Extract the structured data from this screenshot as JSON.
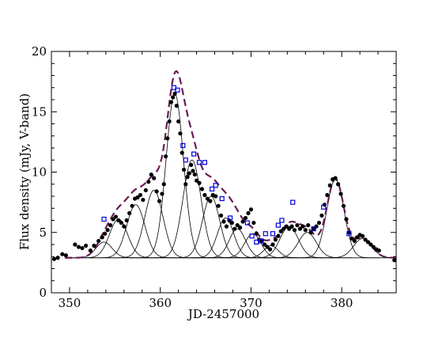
{
  "chart_data": {
    "type": "scatter",
    "xlabel": "JD-2457000",
    "ylabel": "Flux density (mJy, V-band)",
    "xlim": [
      348,
      386
    ],
    "ylim": [
      0,
      20
    ],
    "x_ticks": [
      350,
      360,
      370,
      380
    ],
    "y_ticks": [
      0,
      5,
      10,
      15,
      20
    ],
    "x_minor_step": 2,
    "y_minor_step": 1,
    "baseline": 2.9,
    "colors": {
      "points": "#000000",
      "squares": "#0000dd",
      "model": "#6a1a55",
      "components": "#000000"
    },
    "components": [
      {
        "center": 353.8,
        "amp": 1.3,
        "width": 0.9
      },
      {
        "center": 355.4,
        "amp": 3.2,
        "width": 1.0
      },
      {
        "center": 357.3,
        "amp": 4.4,
        "width": 1.0
      },
      {
        "center": 359.3,
        "amp": 5.6,
        "width": 1.0
      },
      {
        "center": 361.6,
        "amp": 13.6,
        "width": 0.95
      },
      {
        "center": 363.5,
        "amp": 8.1,
        "width": 1.0
      },
      {
        "center": 365.6,
        "amp": 5.1,
        "width": 0.95
      },
      {
        "center": 367.2,
        "amp": 3.3,
        "width": 0.9
      },
      {
        "center": 368.5,
        "amp": 2.4,
        "width": 0.9
      },
      {
        "center": 370.2,
        "amp": 2.0,
        "width": 0.9
      },
      {
        "center": 372.2,
        "amp": 1.0,
        "width": 0.8
      },
      {
        "center": 374.2,
        "amp": 2.6,
        "width": 1.0
      },
      {
        "center": 376.2,
        "amp": 2.1,
        "width": 1.0
      },
      {
        "center": 379.3,
        "amp": 6.5,
        "width": 0.95
      },
      {
        "center": 382.3,
        "amp": 1.6,
        "width": 1.0
      }
    ],
    "points": [
      [
        348.3,
        2.8
      ],
      [
        348.7,
        2.9
      ],
      [
        349.2,
        3.2
      ],
      [
        349.6,
        3.1
      ],
      [
        350.6,
        4.0
      ],
      [
        351.0,
        3.8
      ],
      [
        351.4,
        3.7
      ],
      [
        351.8,
        3.9
      ],
      [
        352.3,
        3.5
      ],
      [
        352.7,
        3.9
      ],
      [
        353.2,
        4.3
      ],
      [
        353.6,
        4.6
      ],
      [
        353.9,
        4.9
      ],
      [
        354.2,
        5.2
      ],
      [
        354.5,
        5.6
      ],
      [
        354.8,
        6.1
      ],
      [
        355.1,
        6.3
      ],
      [
        355.4,
        6.0
      ],
      [
        355.7,
        5.8
      ],
      [
        356.0,
        5.5
      ],
      [
        356.3,
        6.0
      ],
      [
        356.6,
        6.6
      ],
      [
        356.9,
        7.2
      ],
      [
        357.2,
        7.8
      ],
      [
        357.5,
        7.9
      ],
      [
        357.8,
        8.1
      ],
      [
        358.1,
        7.7
      ],
      [
        358.4,
        8.5
      ],
      [
        358.7,
        9.2
      ],
      [
        359.0,
        9.8
      ],
      [
        359.3,
        9.5
      ],
      [
        359.6,
        8.4
      ],
      [
        359.9,
        7.6
      ],
      [
        360.2,
        8.2
      ],
      [
        360.4,
        9.0
      ],
      [
        360.6,
        11.3
      ],
      [
        360.8,
        12.8
      ],
      [
        361.0,
        14.2
      ],
      [
        361.2,
        15.8
      ],
      [
        361.4,
        16.2
      ],
      [
        361.6,
        16.5
      ],
      [
        361.8,
        15.5
      ],
      [
        362.0,
        14.2
      ],
      [
        362.2,
        13.2
      ],
      [
        362.4,
        11.6
      ],
      [
        362.6,
        10.2
      ],
      [
        362.8,
        9.0
      ],
      [
        363.0,
        9.6
      ],
      [
        363.2,
        9.9
      ],
      [
        363.4,
        10.6
      ],
      [
        363.6,
        10.1
      ],
      [
        363.8,
        9.8
      ],
      [
        364.0,
        9.3
      ],
      [
        364.3,
        9.1
      ],
      [
        364.6,
        8.6
      ],
      [
        364.9,
        8.1
      ],
      [
        365.2,
        7.8
      ],
      [
        365.5,
        7.6
      ],
      [
        365.8,
        8.1
      ],
      [
        366.1,
        8.0
      ],
      [
        366.4,
        7.2
      ],
      [
        366.7,
        6.4
      ],
      [
        367.0,
        5.9
      ],
      [
        367.3,
        5.5
      ],
      [
        367.6,
        6.0
      ],
      [
        367.9,
        5.8
      ],
      [
        368.2,
        5.3
      ],
      [
        368.5,
        5.6
      ],
      [
        368.8,
        5.4
      ],
      [
        369.1,
        5.9
      ],
      [
        369.4,
        6.2
      ],
      [
        369.7,
        6.6
      ],
      [
        370.0,
        6.9
      ],
      [
        370.3,
        5.8
      ],
      [
        370.6,
        4.9
      ],
      [
        370.9,
        4.4
      ],
      [
        371.2,
        4.3
      ],
      [
        371.5,
        4.0
      ],
      [
        371.8,
        3.8
      ],
      [
        372.1,
        3.6
      ],
      [
        372.4,
        4.0
      ],
      [
        372.7,
        4.4
      ],
      [
        373.0,
        4.7
      ],
      [
        373.3,
        5.1
      ],
      [
        373.6,
        5.3
      ],
      [
        373.9,
        5.5
      ],
      [
        374.2,
        5.3
      ],
      [
        374.5,
        5.5
      ],
      [
        374.8,
        5.2
      ],
      [
        375.1,
        5.6
      ],
      [
        375.4,
        5.3
      ],
      [
        375.7,
        5.5
      ],
      [
        376.0,
        5.2
      ],
      [
        376.3,
        5.6
      ],
      [
        376.6,
        5.0
      ],
      [
        376.9,
        5.3
      ],
      [
        377.2,
        5.5
      ],
      [
        377.5,
        5.8
      ],
      [
        377.8,
        6.4
      ],
      [
        378.1,
        7.3
      ],
      [
        378.4,
        8.1
      ],
      [
        378.7,
        8.9
      ],
      [
        379.0,
        9.4
      ],
      [
        379.3,
        9.5
      ],
      [
        379.6,
        9.0
      ],
      [
        379.9,
        8.2
      ],
      [
        380.2,
        7.2
      ],
      [
        380.5,
        6.1
      ],
      [
        380.8,
        5.0
      ],
      [
        381.1,
        4.5
      ],
      [
        381.4,
        4.3
      ],
      [
        381.7,
        4.6
      ],
      [
        382.0,
        4.8
      ],
      [
        382.3,
        4.7
      ],
      [
        382.6,
        4.4
      ],
      [
        382.9,
        4.2
      ],
      [
        383.2,
        4.0
      ],
      [
        383.5,
        3.8
      ],
      [
        383.8,
        3.6
      ],
      [
        384.1,
        3.5
      ],
      [
        385.8,
        2.7
      ]
    ],
    "squares": [
      [
        353.8,
        6.1
      ],
      [
        361.5,
        17.0
      ],
      [
        361.9,
        16.8
      ],
      [
        362.5,
        12.2
      ],
      [
        362.8,
        11.0
      ],
      [
        363.7,
        11.5
      ],
      [
        364.3,
        10.8
      ],
      [
        364.9,
        10.8
      ],
      [
        365.7,
        8.6
      ],
      [
        366.1,
        8.9
      ],
      [
        366.8,
        7.8
      ],
      [
        367.7,
        6.2
      ],
      [
        369.6,
        5.8
      ],
      [
        370.1,
        4.7
      ],
      [
        370.6,
        4.2
      ],
      [
        371.1,
        4.3
      ],
      [
        371.6,
        4.9
      ],
      [
        372.4,
        4.9
      ],
      [
        373.0,
        5.6
      ],
      [
        373.4,
        6.0
      ],
      [
        374.6,
        7.5
      ],
      [
        376.9,
        5.3
      ],
      [
        378.0,
        7.1
      ],
      [
        380.8,
        4.9
      ]
    ]
  }
}
